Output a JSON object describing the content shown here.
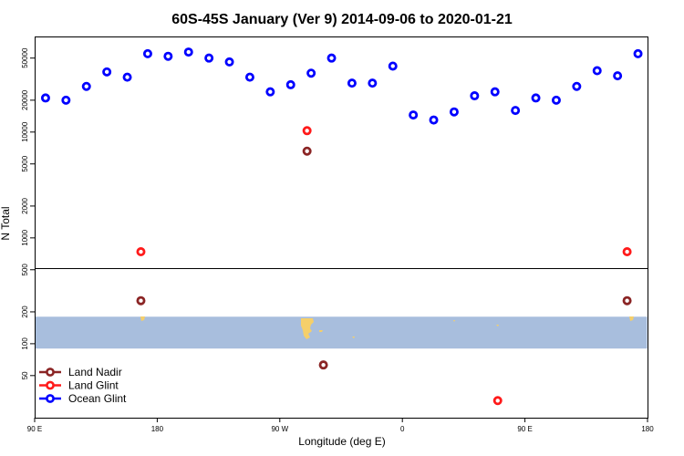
{
  "chart_data": {
    "type": "scatter",
    "title": "60S-45S January (Ver 9)   2014-09-06 to 2020-01-21",
    "xlabel": "Longitude (deg E)",
    "ylabel": "N Total",
    "y_scale": "log",
    "x_ticks": [
      {
        "value": 90,
        "label": "90 E"
      },
      {
        "value": 180,
        "label": "180"
      },
      {
        "value": 270,
        "label": "90 W"
      },
      {
        "value": 360,
        "label": "0"
      },
      {
        "value": 450,
        "label": "90 E"
      },
      {
        "value": 540,
        "label": "180"
      }
    ],
    "xlim": [
      90,
      540
    ],
    "ylim": [
      20,
      80000
    ],
    "y_ticks": [
      50,
      100,
      200,
      500,
      1000,
      2000,
      5000,
      10000,
      20000,
      50000
    ],
    "grid": false,
    "legend_position": "bottom-left",
    "map_band": {
      "description": "map strip 60S-45S",
      "ocean_color": "#a8bedd",
      "land_color": "#f5cf6a",
      "y_top": 180,
      "y_bottom": 90
    },
    "series": [
      {
        "name": "Land Nadir",
        "color": "#8b2525",
        "points": [
          {
            "x": 168,
            "y": 255
          },
          {
            "x": 290,
            "y": 6600
          },
          {
            "x": 302,
            "y": 63
          },
          {
            "x": 525,
            "y": 255
          }
        ]
      },
      {
        "name": "Land Glint",
        "color": "#ff1a1a",
        "points": [
          {
            "x": 168,
            "y": 740
          },
          {
            "x": 290,
            "y": 10300
          },
          {
            "x": 430,
            "y": 29
          },
          {
            "x": 525,
            "y": 740
          }
        ]
      },
      {
        "name": "Ocean Glint",
        "color": "#0000ff",
        "points": [
          {
            "x": 98,
            "y": 21000
          },
          {
            "x": 113,
            "y": 20000
          },
          {
            "x": 128,
            "y": 27000
          },
          {
            "x": 143,
            "y": 37000
          },
          {
            "x": 158,
            "y": 33000
          },
          {
            "x": 173,
            "y": 55000
          },
          {
            "x": 188,
            "y": 52000
          },
          {
            "x": 203,
            "y": 57000
          },
          {
            "x": 218,
            "y": 50000
          },
          {
            "x": 233,
            "y": 46000
          },
          {
            "x": 248,
            "y": 33000
          },
          {
            "x": 263,
            "y": 24000
          },
          {
            "x": 278,
            "y": 28000
          },
          {
            "x": 293,
            "y": 36000
          },
          {
            "x": 308,
            "y": 50000
          },
          {
            "x": 323,
            "y": 29000
          },
          {
            "x": 338,
            "y": 29000
          },
          {
            "x": 353,
            "y": 42000
          },
          {
            "x": 368,
            "y": 14500
          },
          {
            "x": 383,
            "y": 13000
          },
          {
            "x": 398,
            "y": 15500
          },
          {
            "x": 413,
            "y": 22000
          },
          {
            "x": 428,
            "y": 24000
          },
          {
            "x": 443,
            "y": 16000
          },
          {
            "x": 458,
            "y": 21000
          },
          {
            "x": 473,
            "y": 20000
          },
          {
            "x": 488,
            "y": 27000
          },
          {
            "x": 503,
            "y": 38000
          },
          {
            "x": 518,
            "y": 34000
          },
          {
            "x": 533,
            "y": 55000
          }
        ]
      }
    ]
  }
}
